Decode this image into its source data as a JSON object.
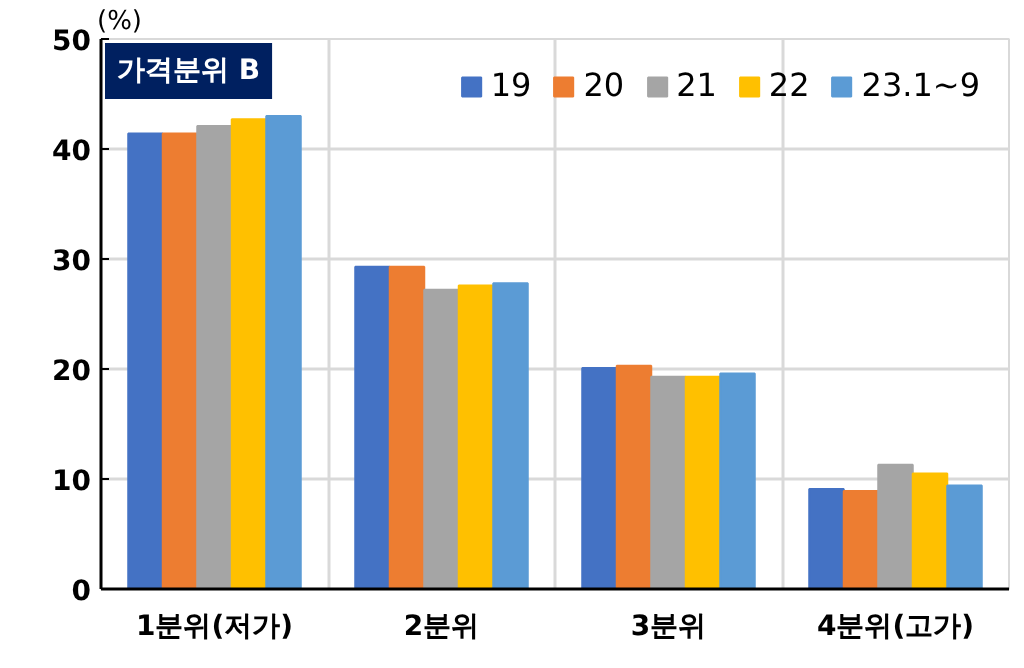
{
  "chart_data": {
    "type": "bar",
    "title": "가격분위 B",
    "ylabel": "(%)",
    "categories": [
      "1분위(저가)",
      "2분위",
      "3분위",
      "4분위(고가)"
    ],
    "series": [
      {
        "name": "19",
        "color": "#4472c4",
        "values": [
          41.4,
          29.3,
          20.1,
          9.1
        ]
      },
      {
        "name": "20",
        "color": "#ed7d31",
        "values": [
          41.4,
          29.3,
          20.3,
          8.9
        ]
      },
      {
        "name": "21",
        "color": "#a5a5a5",
        "values": [
          42.1,
          27.2,
          19.3,
          11.3
        ]
      },
      {
        "name": "22",
        "color": "#ffc000",
        "values": [
          42.7,
          27.6,
          19.3,
          10.5
        ]
      },
      {
        "name": "23.1~9",
        "color": "#5b9bd5",
        "values": [
          43.0,
          27.8,
          19.6,
          9.4
        ]
      }
    ],
    "ylim": [
      0,
      50
    ],
    "yticks": [
      0,
      10,
      20,
      30,
      40,
      50
    ],
    "grid": true,
    "legend": "top right"
  }
}
